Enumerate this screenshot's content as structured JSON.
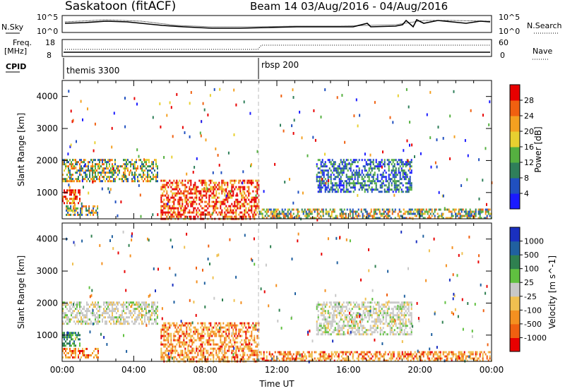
{
  "header": {
    "title": "Saskatoon (fitACF)",
    "beam": "Beam 14 03/Aug/2016 - 04/Aug/2016"
  },
  "aux": {
    "nsky_label": "N.Sky",
    "nsky_ticks": [
      "10^5",
      "10^0"
    ],
    "nsearch_label": "N.Search",
    "nsearch_ticks": [
      "10^5",
      "10^0"
    ],
    "freq_label": "Freq.",
    "freq_unit": "[MHz]",
    "freq_ticks": [
      "18",
      "8"
    ],
    "nave_label": "Nave",
    "nave_ticks": [
      "60",
      "0"
    ],
    "cpid_label": "CPID",
    "cpid_segments": [
      {
        "name": "themis 3300",
        "start_hour": 0
      },
      {
        "name": "rbsp 200",
        "start_hour": 11
      }
    ]
  },
  "chart_data": [
    {
      "type": "heatmap",
      "title": "Power",
      "ylabel": "Slant Range [km]",
      "xlabel": "",
      "xlim": [
        0,
        24
      ],
      "ylim": [
        180,
        4500
      ],
      "y_ticks": [
        1000,
        2000,
        3000,
        4000
      ],
      "colorbar": {
        "label": "Power [dB]",
        "ticks": [
          "4",
          "8",
          "12",
          "16",
          "20",
          "24",
          "28"
        ],
        "colors": [
          "#1a1aff",
          "#2050c0",
          "#2f7f5a",
          "#55b040",
          "#e8d030",
          "#f4a020",
          "#f06010",
          "#e80000"
        ]
      },
      "echo_regions": [
        {
          "start_h": 0.0,
          "end_h": 5.3,
          "range_min": 1350,
          "range_max": 2050,
          "level": "medium"
        },
        {
          "start_h": 0.0,
          "end_h": 1.0,
          "range_min": 700,
          "range_max": 1100,
          "level": "high"
        },
        {
          "start_h": 0.2,
          "end_h": 2.0,
          "range_min": 300,
          "range_max": 600,
          "level": "medium"
        },
        {
          "start_h": 5.5,
          "end_h": 11.0,
          "range_min": 180,
          "range_max": 1400,
          "level": "high"
        },
        {
          "start_h": 11.0,
          "end_h": 24.0,
          "range_min": 180,
          "range_max": 500,
          "level": "medium"
        },
        {
          "start_h": 14.2,
          "end_h": 19.5,
          "range_min": 1000,
          "range_max": 2050,
          "level": "low"
        }
      ]
    },
    {
      "type": "heatmap",
      "title": "Velocity",
      "ylabel": "Slant Range [km]",
      "xlabel": "Time UT",
      "xlim": [
        0,
        24
      ],
      "ylim": [
        180,
        4500
      ],
      "x_ticks": [
        "00:00",
        "04:00",
        "08:00",
        "12:00",
        "16:00",
        "20:00",
        "00:00"
      ],
      "y_ticks": [
        1000,
        2000,
        3000,
        4000
      ],
      "colorbar": {
        "label": "Velocity [m s^-1]",
        "ticks": [
          "1000",
          "500",
          "100",
          "25",
          "-25",
          "-100",
          "-500",
          "-1000"
        ],
        "colors": [
          "#1a30c0",
          "#2060a0",
          "#2f8050",
          "#60c040",
          "#c8c8c8",
          "#f0c050",
          "#f49020",
          "#f06010",
          "#e80000"
        ]
      },
      "echo_regions": [
        {
          "start_h": 0.0,
          "end_h": 5.3,
          "range_min": 1350,
          "range_max": 2050,
          "level": "ground"
        },
        {
          "start_h": 0.0,
          "end_h": 1.0,
          "range_min": 700,
          "range_max": 1100,
          "level": "positive"
        },
        {
          "start_h": 0.0,
          "end_h": 2.0,
          "range_min": 300,
          "range_max": 600,
          "level": "negative"
        },
        {
          "start_h": 5.5,
          "end_h": 11.0,
          "range_min": 180,
          "range_max": 1400,
          "level": "negative"
        },
        {
          "start_h": 11.0,
          "end_h": 24.0,
          "range_min": 180,
          "range_max": 500,
          "level": "negative"
        },
        {
          "start_h": 14.2,
          "end_h": 19.5,
          "range_min": 1000,
          "range_max": 2050,
          "level": "ground"
        }
      ]
    }
  ]
}
